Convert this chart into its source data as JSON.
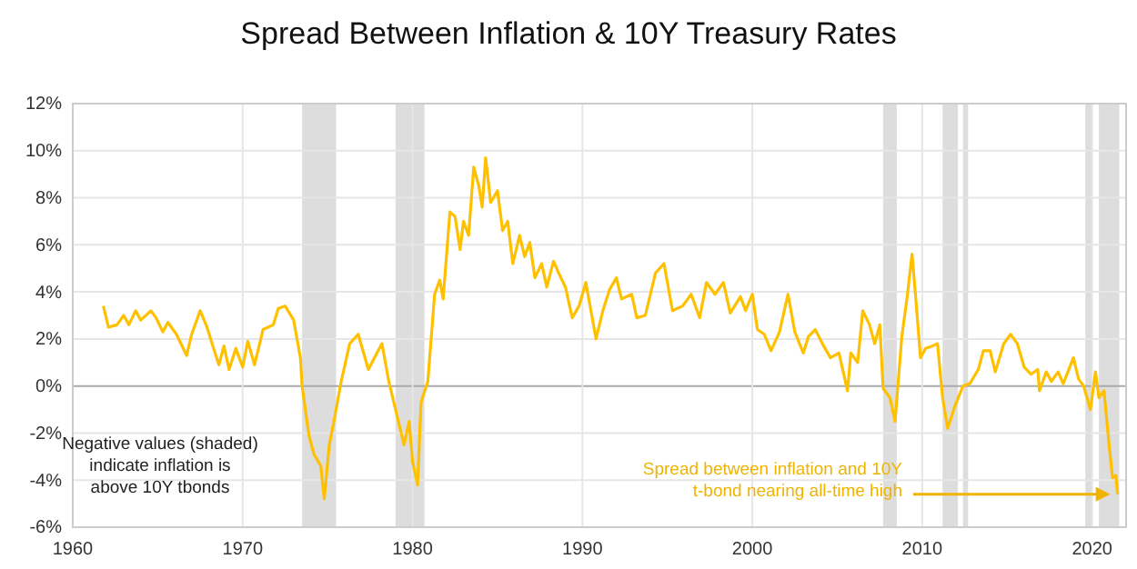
{
  "chart_data": {
    "type": "line",
    "title": "Spread Between Inflation & 10Y Treasury Rates",
    "x": [
      1961.8,
      1962.1,
      1962.6,
      1963,
      1963.3,
      1963.7,
      1964,
      1964.6,
      1964.9,
      1965.3,
      1965.6,
      1966.1,
      1966.7,
      1967,
      1967.5,
      1967.9,
      1968.2,
      1968.6,
      1968.9,
      1969.2,
      1969.6,
      1970,
      1970.3,
      1970.7,
      1971.2,
      1971.8,
      1972.1,
      1972.5,
      1973,
      1973.4,
      1973.5,
      1973.9,
      1974.2,
      1974.6,
      1974.8,
      1975.1,
      1975.4,
      1975.8,
      1976.3,
      1976.8,
      1977.4,
      1977.9,
      1978.2,
      1978.6,
      1979.1,
      1979.5,
      1979.8,
      1980,
      1980.3,
      1980.5,
      1980.9,
      1981.3,
      1981.6,
      1981.8,
      1982.2,
      1982.5,
      1982.8,
      1983,
      1983.3,
      1983.6,
      1983.9,
      1984.1,
      1984.3,
      1984.6,
      1985,
      1985.3,
      1985.6,
      1985.9,
      1986.3,
      1986.6,
      1986.9,
      1987.2,
      1987.6,
      1987.9,
      1988.3,
      1988.6,
      1989,
      1989.4,
      1989.8,
      1990.2,
      1990.5,
      1990.8,
      1991.2,
      1991.6,
      1992,
      1992.3,
      1992.9,
      1993.2,
      1993.7,
      1994.3,
      1994.8,
      1995.3,
      1995.9,
      1996.4,
      1996.9,
      1997.3,
      1997.8,
      1998.3,
      1998.7,
      1999.3,
      1999.6,
      2000,
      2000.3,
      2000.7,
      2001.1,
      2001.6,
      2002.1,
      2002.5,
      2003,
      2003.3,
      2003.7,
      2004.2,
      2004.6,
      2005.1,
      2005.6,
      2005.8,
      2006.2,
      2006.5,
      2006.9,
      2007.2,
      2007.5,
      2007.7,
      2008.1,
      2008.4,
      2008.8,
      2009.1,
      2009.4,
      2009.6,
      2009.9,
      2010.2,
      2010.6,
      2010.9,
      2011.2,
      2011.5,
      2011.9,
      2012.4,
      2012.8,
      2013.3,
      2013.6,
      2014,
      2014.3,
      2014.8,
      2015.2,
      2015.6,
      2016,
      2016.4,
      2016.8,
      2016.9,
      2017.3,
      2017.6,
      2018,
      2018.3,
      2018.9,
      2019.2,
      2019.5,
      2019.9,
      2020.2,
      2020.4,
      2020.7,
      2021,
      2021.2,
      2021.4,
      2021.5
    ],
    "series": [
      {
        "color": "#ffc000",
        "values": [
          3.4,
          2.5,
          2.6,
          3.0,
          2.6,
          3.2,
          2.8,
          3.2,
          2.9,
          2.3,
          2.7,
          2.2,
          1.3,
          2.2,
          3.2,
          2.5,
          1.8,
          0.9,
          1.7,
          0.7,
          1.6,
          0.8,
          1.9,
          0.9,
          2.4,
          2.6,
          3.3,
          3.4,
          2.8,
          1.2,
          0.0,
          -2.1,
          -2.9,
          -3.4,
          -4.8,
          -2.5,
          -1.4,
          0.2,
          1.8,
          2.2,
          0.7,
          1.4,
          1.8,
          0.2,
          -1.3,
          -2.5,
          -1.5,
          -3.2,
          -4.2,
          -0.7,
          0.2,
          3.9,
          4.5,
          3.7,
          7.4,
          7.2,
          5.8,
          7.0,
          6.4,
          9.3,
          8.5,
          7.6,
          9.7,
          7.8,
          8.3,
          6.6,
          7.0,
          5.2,
          6.4,
          5.5,
          6.1,
          4.6,
          5.2,
          4.2,
          5.3,
          4.8,
          4.2,
          2.9,
          3.4,
          4.4,
          3.2,
          2.0,
          3.2,
          4.1,
          4.6,
          3.7,
          3.9,
          2.9,
          3.0,
          4.8,
          5.2,
          3.2,
          3.4,
          3.9,
          2.9,
          4.4,
          3.9,
          4.4,
          3.1,
          3.8,
          3.2,
          3.9,
          2.4,
          2.2,
          1.5,
          2.3,
          3.9,
          2.3,
          1.4,
          2.1,
          2.4,
          1.7,
          1.2,
          1.4,
          -0.2,
          1.4,
          1.0,
          3.2,
          2.6,
          1.8,
          2.6,
          -0.1,
          -0.5,
          -1.5,
          2.1,
          3.7,
          5.6,
          3.9,
          1.2,
          1.6,
          1.7,
          1.8,
          -0.5,
          -1.8,
          -0.9,
          0.0,
          0.1,
          0.7,
          1.5,
          1.5,
          0.6,
          1.8,
          2.2,
          1.8,
          0.8,
          0.5,
          0.7,
          -0.2,
          0.6,
          0.2,
          0.6,
          0.1,
          1.2,
          0.3,
          0.0,
          -1.0,
          0.6,
          -0.5,
          -0.2,
          -2.5,
          -3.9,
          -3.8,
          -4.6
        ]
      }
    ],
    "xlim": [
      1960,
      2022
    ],
    "xticks": [
      1960,
      1970,
      1980,
      1990,
      2000,
      2010,
      2020
    ],
    "ylim": [
      -6,
      12
    ],
    "yticks": [
      {
        "value": -6,
        "label": "-6%"
      },
      {
        "value": -4,
        "label": "-4%"
      },
      {
        "value": -2,
        "label": "-2%"
      },
      {
        "value": 0,
        "label": "0%"
      },
      {
        "value": 2,
        "label": "2%"
      },
      {
        "value": 4,
        "label": "4%"
      },
      {
        "value": 6,
        "label": "6%"
      },
      {
        "value": 8,
        "label": "8%"
      },
      {
        "value": 10,
        "label": "10%"
      },
      {
        "value": 12,
        "label": "12%"
      }
    ],
    "grid": true,
    "bands": [
      {
        "axis": "x",
        "from": 1973.5,
        "to": 1975.5,
        "color": "#dddddd"
      },
      {
        "axis": "x",
        "from": 1979,
        "to": 1980.7,
        "color": "#dddddd"
      },
      {
        "axis": "x",
        "from": 2007.7,
        "to": 2008.5,
        "color": "#dddddd"
      },
      {
        "axis": "x",
        "from": 2011.2,
        "to": 2012.1,
        "color": "#dddddd"
      },
      {
        "axis": "x",
        "from": 2012.4,
        "to": 2012.7,
        "color": "#dddddd"
      },
      {
        "axis": "x",
        "from": 2019.6,
        "to": 2020,
        "color": "#dddddd"
      },
      {
        "axis": "x",
        "from": 2020.4,
        "to": 2021.6,
        "color": "#dddddd"
      }
    ],
    "annotations": [
      "Negative values (shaded) indicate inflation is above 10Y tbonds",
      {
        "text": "Spread between inflation and 10Y t-bond nearing all-time high",
        "x": 2021.5,
        "y": -4.6
      }
    ]
  }
}
